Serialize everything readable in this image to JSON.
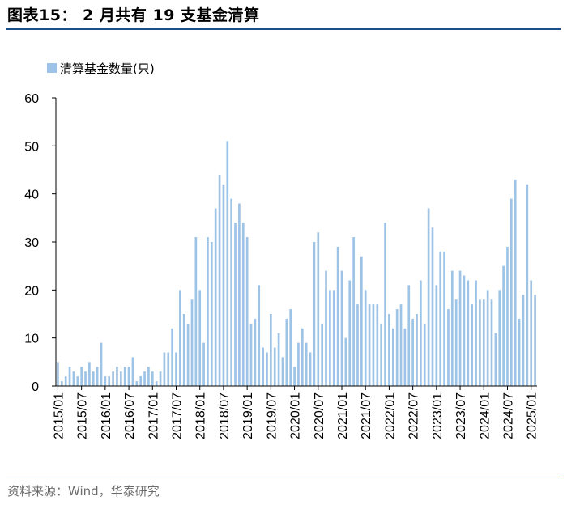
{
  "header": {
    "title": "图表15： 2 月共有 19 支基金清算"
  },
  "footer": {
    "source": "资料来源：Wind，华泰研究"
  },
  "colors": {
    "bar": "#9dc3e6",
    "axis": "#000000",
    "rule": "#1b4f8a"
  },
  "chart_data": {
    "type": "bar",
    "title": "",
    "xlabel": "",
    "ylabel": "",
    "ylim": [
      0,
      60
    ],
    "yticks": [
      0,
      10,
      20,
      30,
      40,
      50,
      60
    ],
    "grid": false,
    "legend": {
      "position": "top-left",
      "entries": [
        "清算基金数量(只)"
      ]
    },
    "series": [
      {
        "name": "清算基金数量(只)",
        "values": [
          5,
          1,
          2,
          4,
          3,
          2,
          4,
          3,
          5,
          3,
          4,
          9,
          2,
          2,
          3,
          4,
          3,
          4,
          4,
          6,
          1,
          2,
          3,
          4,
          3,
          1,
          3,
          7,
          7,
          12,
          7,
          20,
          15,
          13,
          18,
          31,
          20,
          9,
          31,
          30,
          37,
          44,
          42,
          51,
          39,
          34,
          38,
          34,
          31,
          13,
          14,
          21,
          8,
          7,
          15,
          8,
          11,
          6,
          14,
          16,
          4,
          9,
          12,
          9,
          7,
          30,
          32,
          13,
          24,
          20,
          20,
          29,
          24,
          10,
          22,
          31,
          17,
          27,
          20,
          17,
          17,
          17,
          13,
          34,
          15,
          12,
          16,
          17,
          12,
          21,
          14,
          15,
          22,
          13,
          37,
          33,
          21,
          28,
          28,
          16,
          24,
          18,
          24,
          23,
          22,
          17,
          22,
          18,
          18,
          20,
          18,
          11,
          20,
          25,
          29,
          39,
          43,
          14,
          19,
          42,
          22,
          19
        ]
      }
    ],
    "categories_start": "2015/01",
    "categories_end": "2025/02",
    "xtick_labels": [
      "2015/01",
      "2015/07",
      "2016/01",
      "2016/07",
      "2017/01",
      "2017/07",
      "2018/01",
      "2018/07",
      "2019/01",
      "2019/07",
      "2020/01",
      "2020/07",
      "2021/01",
      "2021/07",
      "2022/01",
      "2022/07",
      "2023/01",
      "2023/07",
      "2024/01",
      "2024/07",
      "2025/01"
    ]
  }
}
